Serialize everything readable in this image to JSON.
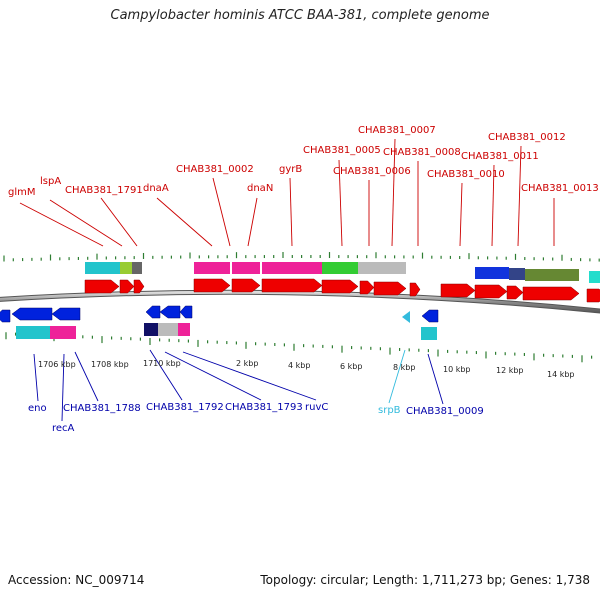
{
  "title": "Campylobacter hominis ATCC BAA-381, complete genome",
  "footer": {
    "accession": "Accession: NC_009714",
    "info": "Topology: circular; Length: 1,711,273 bp; Genes: 1,738"
  },
  "colors": {
    "forward_label": "#cc0000",
    "reverse_label": "#0000aa",
    "rna_label": "#33bbdd",
    "backbone": "#777777",
    "tick": "#2e7d32"
  },
  "forward_labels": [
    "glmM",
    "lspA",
    "CHAB381_1791",
    "dnaA",
    "CHAB381_0002",
    "dnaN",
    "gyrB",
    "CHAB381_0005",
    "CHAB381_0006",
    "CHAB381_0007",
    "CHAB381_0008",
    "CHAB381_0010",
    "CHAB381_0011",
    "CHAB381_0012",
    "CHAB381_0013"
  ],
  "reverse_labels": [
    "eno",
    "recA",
    "CHAB381_1788",
    "CHAB381_1792",
    "CHAB381_1793",
    "ruvC",
    "srpB",
    "CHAB381_0009"
  ],
  "tick_labels": [
    "1706 kbp",
    "1708 kbp",
    "1710 kbp",
    "2 kbp",
    "4 kbp",
    "6 kbp",
    "8 kbp",
    "10 kbp",
    "12 kbp",
    "14 kbp"
  ]
}
